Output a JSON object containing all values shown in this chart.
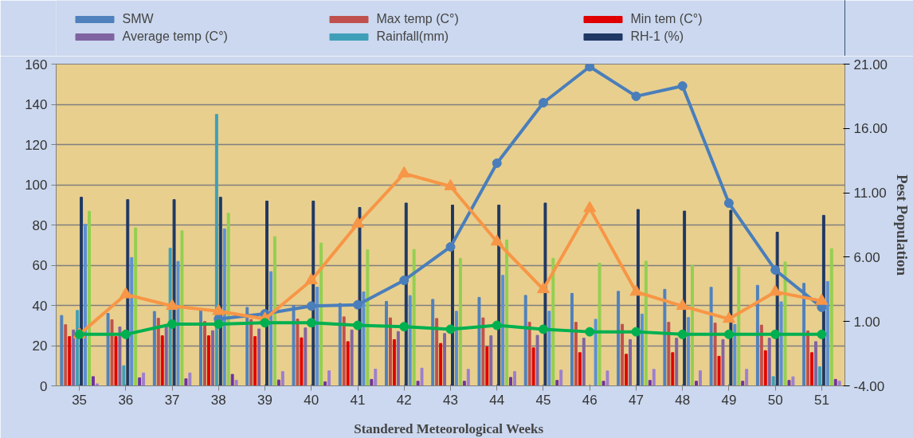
{
  "chart_data": {
    "type": "bar",
    "xlabel": "Standered Meteorological  Weeks",
    "y2label": "Pest Population",
    "categories": [
      "35",
      "36",
      "37",
      "38",
      "39",
      "40",
      "41",
      "42",
      "43",
      "44",
      "45",
      "46",
      "47",
      "48",
      "49",
      "50",
      "51"
    ],
    "ylim": [
      0,
      160
    ],
    "yticks": [
      0,
      20,
      40,
      60,
      80,
      100,
      120,
      140,
      160
    ],
    "y2lim": [
      -4,
      21
    ],
    "y2ticks": [
      {
        "value": -4,
        "label": "-4.00"
      },
      {
        "value": 1,
        "label": "1.00"
      },
      {
        "value": 6,
        "label": "6.00"
      },
      {
        "value": 11,
        "label": "11.00"
      },
      {
        "value": 16,
        "label": "16.00"
      },
      {
        "value": 21,
        "label": "21.00"
      }
    ],
    "grid": "y",
    "legend": "top",
    "series": [
      {
        "name": "SMW",
        "color": "#4f81bd",
        "values": [
          35,
          36,
          37,
          38,
          39,
          40,
          41,
          42,
          43,
          44,
          45,
          46,
          47,
          48,
          49,
          50,
          51
        ]
      },
      {
        "name": "Max temp (C°)",
        "color": "#c0504d",
        "values": [
          30.4,
          32.9,
          33.6,
          32,
          33,
          33.2,
          34.3,
          33.8,
          33.5,
          33.8,
          31.6,
          31.6,
          30.6,
          31.6,
          31.2,
          30.2,
          27.3
        ]
      },
      {
        "name": "Min tem (C°)",
        "color": "#e00000",
        "values": [
          24.5,
          24.5,
          24.9,
          24.9,
          24.5,
          23.9,
          22,
          23,
          21.1,
          19.4,
          18.9,
          16.5,
          15.7,
          16.5,
          14.7,
          17.5,
          16.5
        ]
      },
      {
        "name": "Average temp (C°)",
        "color": "#8064a2",
        "values": [
          27.8,
          29.3,
          30,
          27.4,
          28.3,
          28.8,
          27.8,
          27,
          26,
          24.9,
          25.1,
          23.7,
          23,
          23.7,
          23,
          23.7,
          22
        ]
      },
      {
        "name": "Rainfall(mm)",
        "color": "#3f9fb8",
        "values": [
          37.5,
          10,
          68.4,
          135,
          0,
          0,
          0,
          0,
          0,
          0,
          0,
          0,
          0,
          0,
          0,
          4.6,
          9.5
        ]
      },
      {
        "name": "RH-1 (%)",
        "color": "#1f3864",
        "values": [
          93.8,
          92.6,
          92.6,
          93.8,
          91.9,
          91.9,
          88.7,
          90.9,
          89.9,
          89.9,
          90.9,
          null,
          87.7,
          86.9,
          87.3,
          76.4,
          84.8
        ]
      },
      {
        "color": "#5b8fd4",
        "values": [
          80.3,
          63.8,
          61.9,
          78.1,
          56.8,
          49.1,
          46.7,
          44.9,
          37.1,
          55,
          37.1,
          33.1,
          35.7,
          34,
          30.5,
          41.8,
          51.9
        ]
      },
      {
        "color": "#92d050",
        "values": [
          86.8,
          78.6,
          77.1,
          85.8,
          74.2,
          71,
          67.7,
          67.8,
          63.4,
          72.5,
          63.4,
          61,
          62,
          60,
          59.1,
          61.6,
          68.2
        ]
      },
      {
        "color": "#7030a0",
        "values": [
          4.6,
          4,
          3.5,
          5.7,
          2.9,
          2,
          3.2,
          2.3,
          2.3,
          4.2,
          2.7,
          2.3,
          2.7,
          2.3,
          2.3,
          2.7,
          3.2
        ]
      },
      {
        "color": "#9b7fd0",
        "values": [
          1,
          6.4,
          6.4,
          2.8,
          7.1,
          7.5,
          8.3,
          8.8,
          8.2,
          7.1,
          7.8,
          7.4,
          8.2,
          7.5,
          8.2,
          4.5,
          2.3
        ]
      },
      {
        "type": "line",
        "axis": "y2",
        "color": "#4a7ebb",
        "marker": "circle",
        "values": [
          null,
          null,
          null,
          1.2,
          1.6,
          2.2,
          2.3,
          4.2,
          6.8,
          13.3,
          18.0,
          20.8,
          18.5,
          19.3,
          10.2,
          5.0,
          2.1
        ]
      },
      {
        "type": "line",
        "axis": "y2",
        "color": "#f79646",
        "marker": "triangle",
        "values": [
          0.0,
          3.1,
          2.2,
          1.8,
          1.2,
          4.2,
          8.6,
          12.5,
          11.5,
          7.2,
          3.5,
          9.8,
          3.3,
          2.2,
          1.2,
          3.3,
          2.6
        ]
      },
      {
        "type": "line",
        "axis": "y2",
        "color": "#00b050",
        "marker": "circle",
        "values": [
          0.0,
          0.0,
          0.8,
          0.8,
          0.9,
          0.9,
          0.7,
          0.6,
          0.4,
          0.7,
          0.4,
          0.2,
          0.2,
          0.0,
          0.0,
          0.0,
          0.0
        ]
      }
    ]
  }
}
